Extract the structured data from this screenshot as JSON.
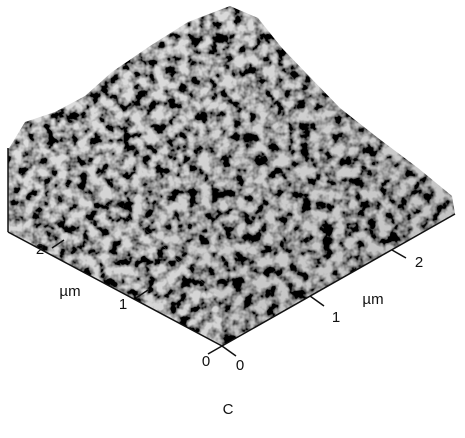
{
  "figure": {
    "left_axis": {
      "ticks": [
        "2",
        "1",
        "0"
      ],
      "unit": "µm"
    },
    "right_axis": {
      "ticks": [
        "0",
        "1",
        "2"
      ],
      "unit": "µm"
    },
    "caption": "C"
  }
}
